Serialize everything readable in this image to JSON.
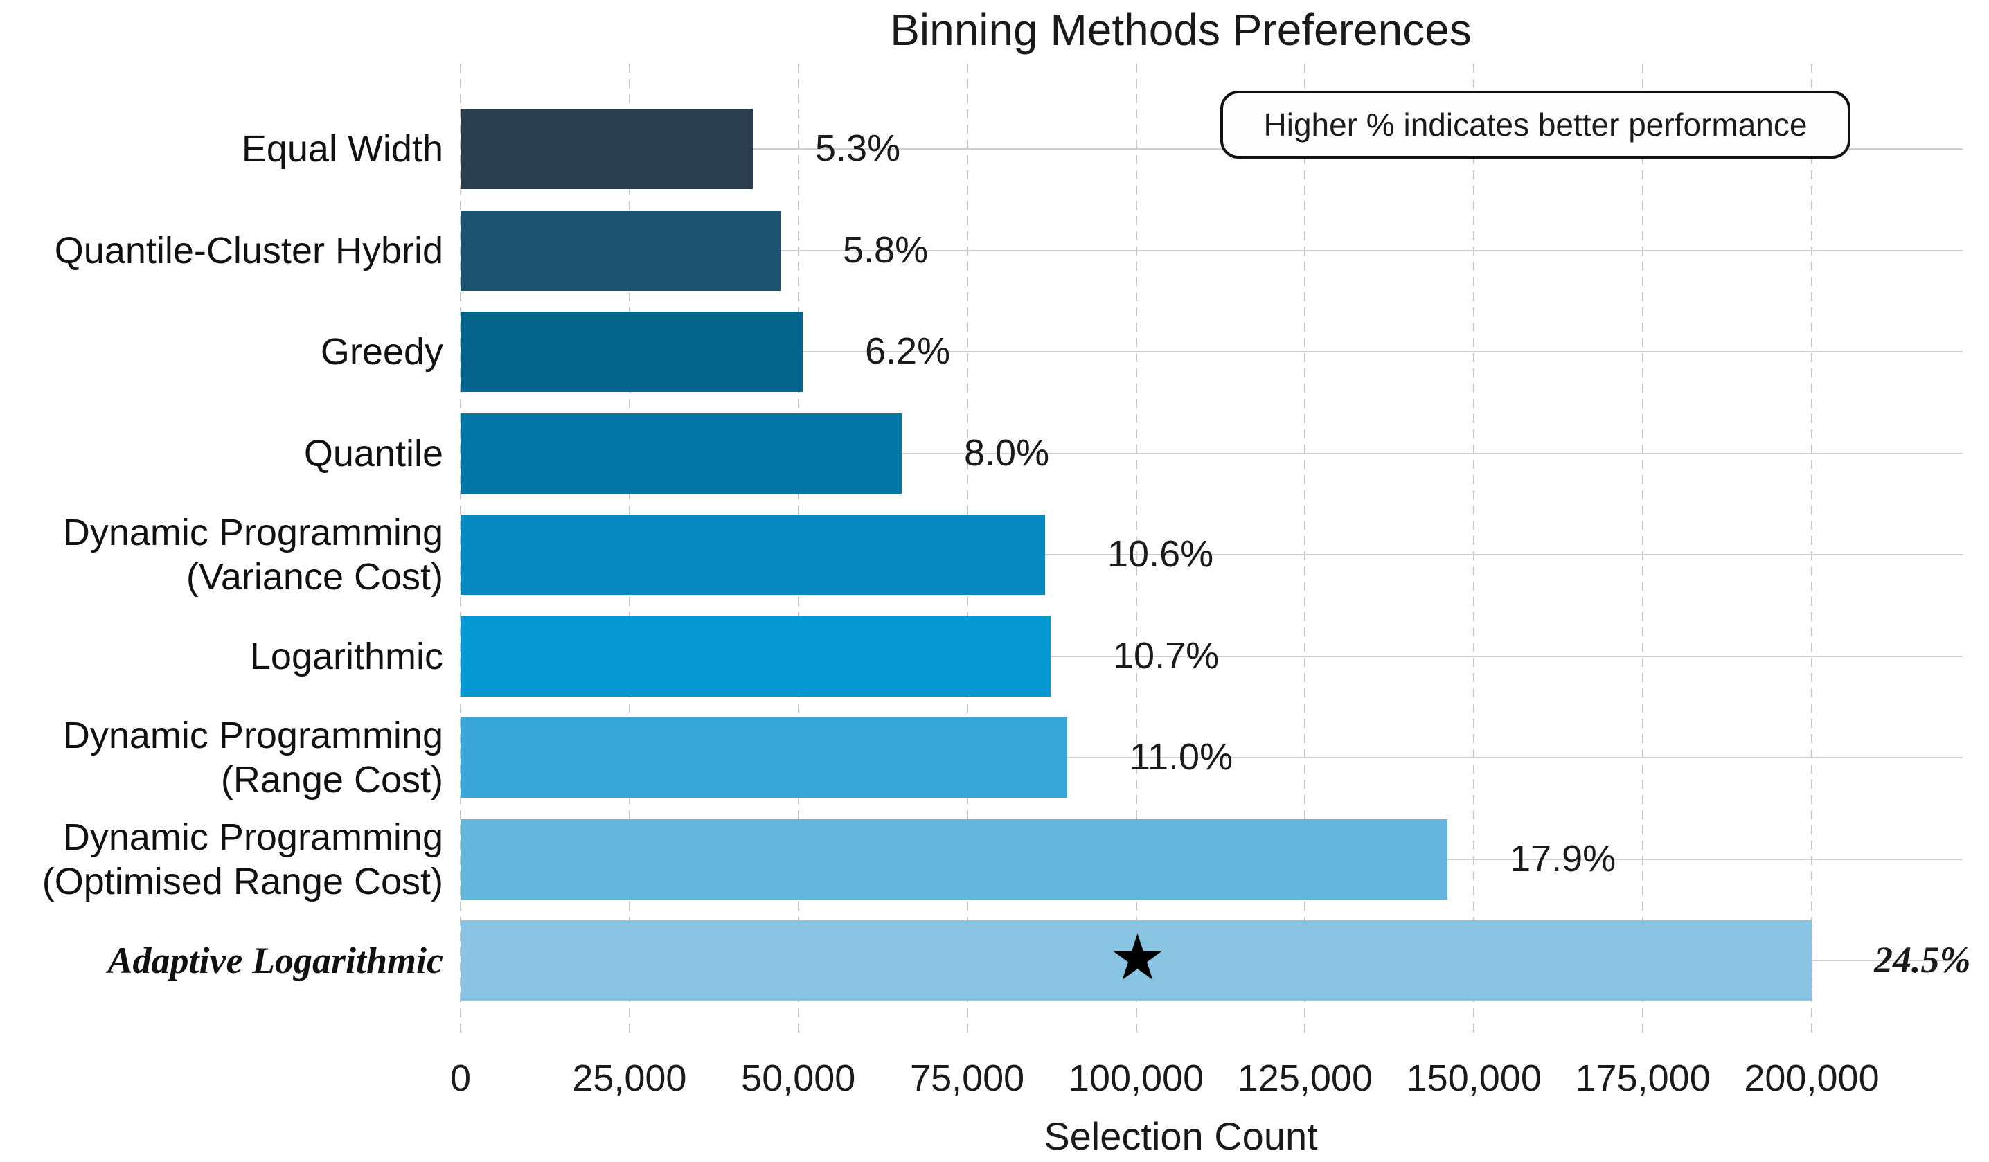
{
  "chart_data": {
    "type": "bar",
    "orientation": "horizontal",
    "title": "Binning Methods Preferences",
    "xlabel": "Selection Count",
    "annotation": "Higher % indicates better performance",
    "categories": [
      "Equal Width",
      "Quantile-Cluster Hybrid",
      "Greedy",
      "Quantile",
      "Dynamic Programming\n(Variance Cost)",
      "Logarithmic",
      "Dynamic Programming\n(Range Cost)",
      "Dynamic Programming\n(Optimised Range Cost)",
      "Adaptive Logarithmic"
    ],
    "values": [
      43265,
      47347,
      50612,
      65306,
      86531,
      87347,
      89796,
      146122,
      200000
    ],
    "percent_labels": [
      "5.3%",
      "5.8%",
      "6.2%",
      "8.0%",
      "10.6%",
      "10.7%",
      "11.0%",
      "17.9%",
      "24.5%"
    ],
    "bar_colors": [
      "#2b3e50",
      "#1b5270",
      "#04648b",
      "#0277a6",
      "#0689c0",
      "#0598d3",
      "#3aa7d9",
      "#64b5dc",
      "#89c4e3"
    ],
    "emphasis_index": 8,
    "star_marker": {
      "category": "Adaptive Logarithmic",
      "value": 100200,
      "glyph": "★"
    },
    "x_ticks": [
      "0",
      "25,000",
      "50,000",
      "75,000",
      "100,000",
      "125,000",
      "150,000",
      "175,000",
      "200,000"
    ],
    "x_tick_values": [
      0,
      25000,
      50000,
      75000,
      100000,
      125000,
      150000,
      175000,
      200000
    ],
    "xlim": [
      0,
      222000
    ],
    "grid": {
      "horizontal": "solid",
      "vertical": "dashed"
    },
    "legend": "none"
  }
}
